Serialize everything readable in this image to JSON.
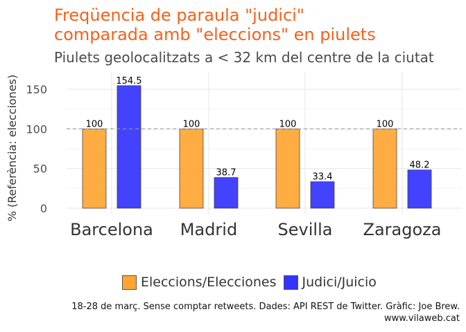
{
  "chart_data": {
    "type": "bar",
    "title_line1": "Freqüencia de paraula \"judici\"",
    "title_line2": "comparada amb \"eleccions\" en piulets",
    "subtitle": "Piulets geolocalitzats a < 32 km del centre de la ciutat",
    "xlabel": "",
    "ylabel": "% (Referència: elecciones)",
    "categories": [
      "Barcelona",
      "Madrid",
      "Sevilla",
      "Zaragoza"
    ],
    "series": [
      {
        "name": "Eleccions/Elecciones",
        "color": "#ffa533",
        "values": [
          100,
          100,
          100,
          100
        ],
        "labels": [
          "100",
          "100",
          "100",
          "100"
        ]
      },
      {
        "name": "Judici/Juicio",
        "color": "#3333ff",
        "values": [
          154.5,
          38.7,
          33.4,
          48.2
        ],
        "labels": [
          "154.5",
          "38.7",
          "33.4",
          "48.2"
        ]
      }
    ],
    "yticks": [
      0,
      50,
      100,
      150
    ],
    "ytick_labels": [
      "0",
      "50",
      "100",
      "150"
    ],
    "ylim": [
      0,
      170
    ],
    "reference_line": 100,
    "grid": true,
    "legend_position": "bottom"
  },
  "caption_line1": "18-28 de març. Sense comptar retweets. Dades: API REST de Twitter. Gràfic: Joe Brew.",
  "caption_line2": "www.vilaweb.cat"
}
